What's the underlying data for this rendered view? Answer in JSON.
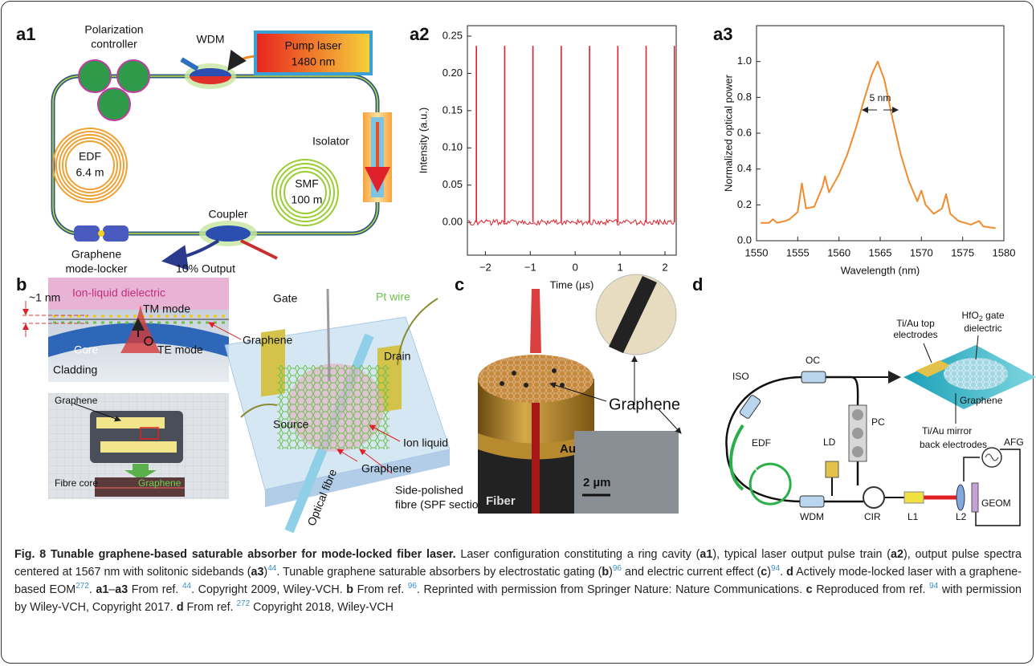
{
  "panel_labels": [
    "a1",
    "a2",
    "a3",
    "b",
    "c",
    "d"
  ],
  "a1": [
    "Polarization",
    "controller",
    "WDM",
    "Pump laser",
    "1480 nm",
    "EDF",
    "6.4 m",
    "Isolator",
    "SMF",
    "100 m",
    "Coupler",
    "Graphene",
    "mode-locker",
    "10% Output"
  ],
  "b": [
    "~1 nm",
    "Ion-liquid dielectric",
    "TM mode",
    "Graphene",
    "Core",
    "TE mode",
    "Cladding",
    "Graphene",
    "Fibre core",
    "Graphene",
    "Gate",
    "Pt wire",
    "Drain",
    "Source",
    "Ion liquid",
    "Graphene",
    "Side-polished",
    "fibre (SPF section)",
    "Optical fibre"
  ],
  "c": [
    "Graphene",
    "Au",
    "Fiber",
    "2 µm"
  ],
  "d": [
    "Ti/Au top",
    "electrodes",
    "HfO",
    "2",
    " gate",
    "dielectric",
    "ISO",
    "OC",
    "EDF",
    "LD",
    "PC",
    "AFG",
    "Graphene",
    "Ti/Au mirror",
    "back electrodes",
    "WDM",
    "CIR",
    "L1",
    "L2",
    "GEOM"
  ],
  "chart_data": [
    {
      "type": "stem",
      "x_label": "Time (µs)",
      "y_label": "Intensity (a.u.)",
      "color": "#e0202a",
      "x": [
        -2.2,
        -1.57,
        -0.94,
        -0.31,
        0.32,
        0.95,
        1.58,
        2.21
      ],
      "values": [
        0.237,
        0.237,
        0.237,
        0.237,
        0.237,
        0.237,
        0.237,
        0.237
      ],
      "xlim": [
        -2.4,
        2.25
      ],
      "ylim": [
        -0.044,
        0.264
      ],
      "xticks": [
        {
          "value": -2,
          "label": "−2"
        },
        {
          "value": -1,
          "label": "−1"
        },
        0,
        1,
        2
      ],
      "yticks": [
        {
          "value": 0,
          "label": "0.00"
        },
        {
          "value": 0.05,
          "label": "0.05"
        },
        {
          "value": 0.1,
          "label": "0.10"
        },
        {
          "value": 0.15,
          "label": "0.15"
        },
        {
          "value": 0.2,
          "label": "0.20"
        },
        {
          "value": 0.25,
          "label": "0.25"
        }
      ]
    },
    {
      "type": "line",
      "x_label": "Wavelength (nm)",
      "y_label": "Normalized optical power",
      "color": "#f08c2e",
      "annotation": "5 nm",
      "x": [
        1550.5,
        1551.5,
        1552,
        1552.5,
        1553.5,
        1554,
        1555,
        1555.5,
        1556,
        1557,
        1558,
        1558.3,
        1558.8,
        1560,
        1561,
        1562,
        1563,
        1564,
        1564.7,
        1565.5,
        1566.5,
        1567.5,
        1568.5,
        1569.5,
        1570,
        1570.5,
        1571.5,
        1572.5,
        1573,
        1573.5,
        1574.5,
        1576,
        1577,
        1577.5,
        1579
      ],
      "values": [
        0.1,
        0.1,
        0.12,
        0.1,
        0.11,
        0.12,
        0.16,
        0.32,
        0.18,
        0.19,
        0.3,
        0.36,
        0.27,
        0.37,
        0.48,
        0.62,
        0.78,
        0.93,
        1.0,
        0.9,
        0.68,
        0.48,
        0.33,
        0.22,
        0.28,
        0.2,
        0.15,
        0.18,
        0.26,
        0.15,
        0.11,
        0.09,
        0.11,
        0.08,
        0.07
      ],
      "xlim": [
        1550,
        1580
      ],
      "ylim": [
        0,
        1.2
      ],
      "xticks": [
        1550,
        1555,
        1560,
        1565,
        1570,
        1575,
        1580
      ],
      "yticks": [
        {
          "value": 0,
          "label": "0.0"
        },
        {
          "value": 0.2,
          "label": "0.2"
        },
        {
          "value": 0.4,
          "label": "0.4"
        },
        {
          "value": 0.6,
          "label": "0.6"
        },
        {
          "value": 0.8,
          "label": "0.8"
        },
        {
          "value": 1,
          "label": "1.0"
        }
      ]
    }
  ],
  "caption": [
    "Fig. 8 Tunable graphene-based saturable absorber for mode-locked fiber laser.",
    " Laser configuration constituting a ring cavity (",
    "a1",
    "), typical laser output pulse train (",
    "a2",
    "), output pulse spectra centered at 1567 nm with solitonic sidebands (",
    "a3",
    ")",
    "44",
    ". Tunable graphene saturable absorbers by electrostatic gating (",
    "b",
    ")",
    "96",
    " and electric current effect (",
    "c",
    ")",
    "94",
    ". ",
    "d",
    " Actively mode-locked laser with a graphene-based EOM",
    "272",
    ". ",
    "a1",
    "–",
    "a3",
    " From ref. ",
    "44",
    ". Copyright 2009, Wiley-VCH. ",
    "b",
    " From ref. ",
    "96",
    ". Reprinted with permission from Springer Nature: Nature Communications. ",
    "c",
    " Reproduced from ref. ",
    "94",
    " with permission by Wiley-VCH, Copyright 2017. ",
    "d",
    " From ref. ",
    "272",
    " Copyright 2018, Wiley-VCH"
  ]
}
